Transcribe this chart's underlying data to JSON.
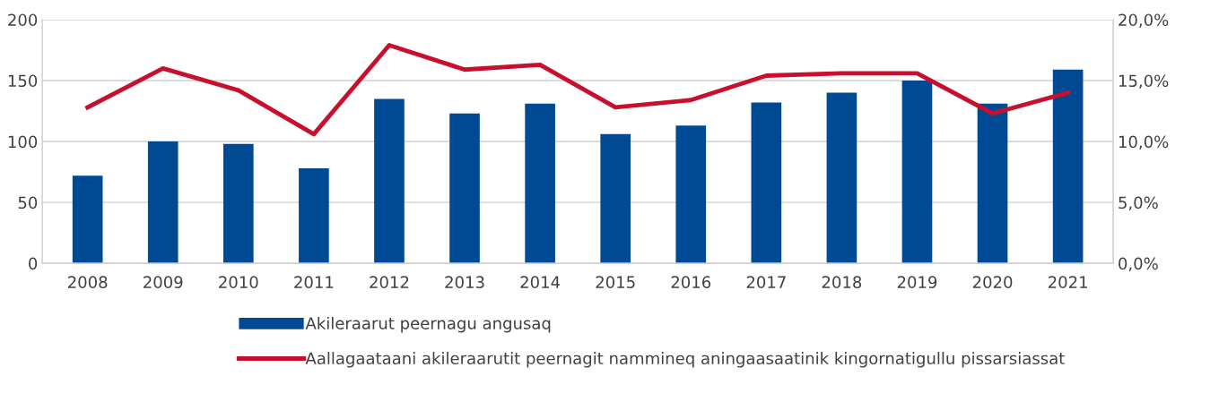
{
  "chart_data": {
    "type": "bar",
    "categories": [
      "2008",
      "2009",
      "2010",
      "2011",
      "2012",
      "2013",
      "2014",
      "2015",
      "2016",
      "2017",
      "2018",
      "2019",
      "2020",
      "2021"
    ],
    "series": [
      {
        "name": "Akileraarut peernagu angusaq",
        "color": "#004a93",
        "values": [
          72,
          100,
          98,
          78,
          135,
          123,
          131,
          106,
          113,
          132,
          140,
          150,
          131,
          159
        ]
      },
      {
        "name": "Aallagaataani akileraarutit peernagit nammineq aningaasaatinik kingornatigullu pissarsiassat",
        "type": "line",
        "axis": "y2",
        "color": "#c8102e",
        "values": [
          12.8,
          16.0,
          14.2,
          10.6,
          17.9,
          15.9,
          16.3,
          12.8,
          13.4,
          15.4,
          15.6,
          15.6,
          12.3,
          14.0
        ]
      }
    ],
    "ylim": [
      0,
      200
    ],
    "yticks": [
      0,
      50,
      100,
      150,
      200
    ],
    "y2lim": [
      0,
      20
    ],
    "y2ticks": [
      {
        "value": 0,
        "label": "0,0%"
      },
      {
        "value": 5,
        "label": "5,0%"
      },
      {
        "value": 10,
        "label": "10,0%"
      },
      {
        "value": 15,
        "label": "15,0%"
      },
      {
        "value": 20,
        "label": "20,0%"
      }
    ],
    "grid": "y",
    "legend": "bottom",
    "marker": "none",
    "line_style": "solid"
  }
}
